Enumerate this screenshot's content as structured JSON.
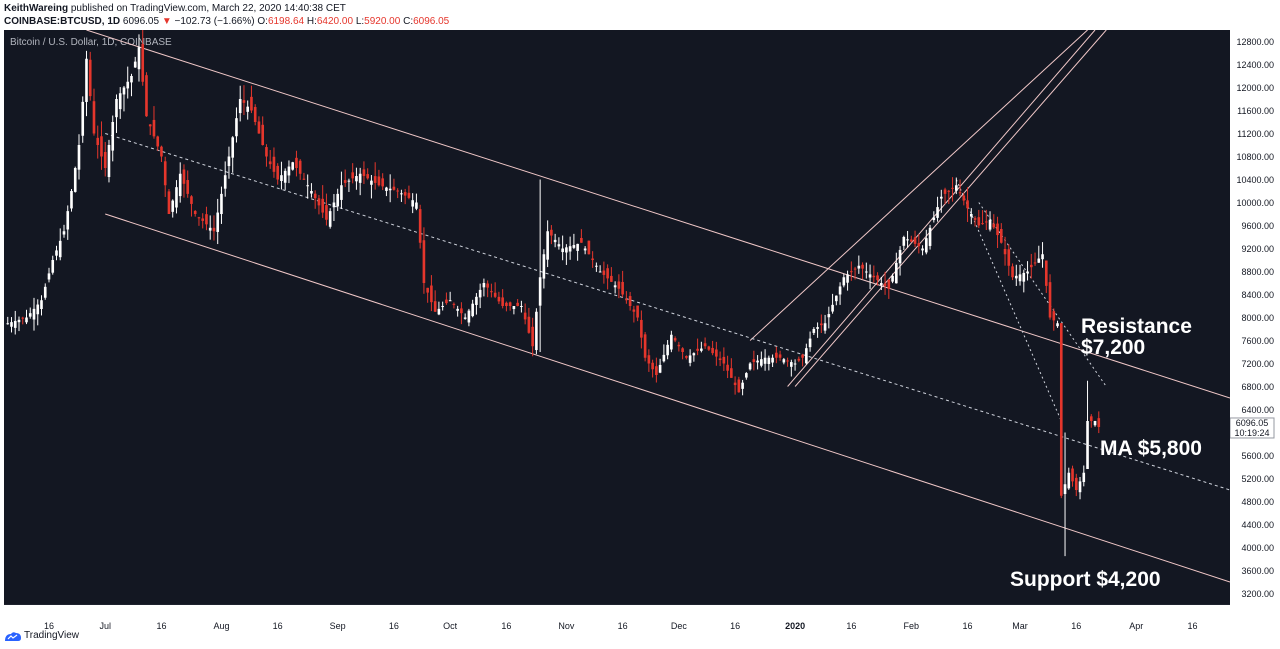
{
  "header": {
    "author": "KeithWareing",
    "published": "published on TradingView.com, March 22, 2020 14:40:38 CET",
    "symbol": "COINBASE:BTCUSD, 1D",
    "last": "6096.05",
    "change_arrow": "▼",
    "change": "−102.73 (−1.66%)",
    "open_label": "O:",
    "open": "6198.64",
    "high_label": "H:",
    "high": "6420.00",
    "low_label": "L:",
    "low": "5920.00",
    "close_label": "C:",
    "close": "6096.05"
  },
  "footer": {
    "brand": "TradingView",
    "logo_icon": "tradingview-logo-icon"
  },
  "colors": {
    "background": "#131722",
    "up": "#ffffff",
    "down": "#e5362c",
    "channel": "#f1c8c8",
    "ma_line": "#cfd3dc",
    "axis_text": "#b2b5be",
    "annotation": "#ffffff"
  },
  "chart_data": {
    "type": "candlestick",
    "title": "Bitcoin / U.S. Dollar, 1D, COINBASE",
    "x_tick_labels": [
      "16",
      "Jul",
      "16",
      "Aug",
      "16",
      "Sep",
      "16",
      "Oct",
      "16",
      "Nov",
      "16",
      "Dec",
      "16",
      "2020",
      "16",
      "Feb",
      "16",
      "Mar",
      "16",
      "Apr",
      "16"
    ],
    "x_tick_dates": [
      "2019-06-16",
      "2019-07-01",
      "2019-07-16",
      "2019-08-01",
      "2019-08-16",
      "2019-09-01",
      "2019-09-16",
      "2019-10-01",
      "2019-10-16",
      "2019-11-01",
      "2019-11-16",
      "2019-12-01",
      "2019-12-16",
      "2020-01-01",
      "2020-01-16",
      "2020-02-01",
      "2020-02-16",
      "2020-03-01",
      "2020-03-16",
      "2020-04-01",
      "2020-04-16"
    ],
    "x_range": [
      "2019-06-04",
      "2020-04-26"
    ],
    "y_range": [
      3000,
      13000
    ],
    "y_ticks": [
      3200,
      3600,
      4000,
      4400,
      4800,
      5200,
      5600,
      6000,
      6400,
      6800,
      7200,
      7600,
      8000,
      8400,
      8800,
      9200,
      9600,
      10000,
      10400,
      10800,
      11200,
      11600,
      12000,
      12400,
      12800
    ],
    "y_tick_labels": [
      "3200.00",
      "3600.00",
      "4000.00",
      "4400.00",
      "4800.00",
      "5200.00",
      "5600.00",
      "6000.00",
      "6400.00",
      "6800.00",
      "7200.00",
      "7600.00",
      "8000.00",
      "8400.00",
      "8800.00",
      "9200.00",
      "9600.00",
      "10000.00",
      "10400.00",
      "10800.00",
      "11200.00",
      "11600.00",
      "12000.00",
      "12400.00",
      "12800.00"
    ],
    "last_price_label": "6096.05",
    "countdown_label": "10:19:24",
    "last_price": 6096.05,
    "grid": false,
    "price_path": [
      [
        "2019-06-05",
        7900
      ],
      [
        "2019-06-10",
        8000
      ],
      [
        "2019-06-14",
        8300
      ],
      [
        "2019-06-17",
        9000
      ],
      [
        "2019-06-20",
        9500
      ],
      [
        "2019-06-22",
        10200
      ],
      [
        "2019-06-24",
        11000
      ],
      [
        "2019-06-26",
        12500
      ],
      [
        "2019-06-28",
        11200
      ],
      [
        "2019-07-01",
        10600
      ],
      [
        "2019-07-04",
        11800
      ],
      [
        "2019-07-08",
        12200
      ],
      [
        "2019-07-10",
        12700
      ],
      [
        "2019-07-12",
        11500
      ],
      [
        "2019-07-16",
        10800
      ],
      [
        "2019-07-18",
        9800
      ],
      [
        "2019-07-21",
        10500
      ],
      [
        "2019-07-25",
        9800
      ],
      [
        "2019-07-30",
        9500
      ],
      [
        "2019-08-03",
        10800
      ],
      [
        "2019-08-06",
        11800
      ],
      [
        "2019-08-09",
        11600
      ],
      [
        "2019-08-13",
        10800
      ],
      [
        "2019-08-16",
        10400
      ],
      [
        "2019-08-20",
        10700
      ],
      [
        "2019-08-25",
        10200
      ],
      [
        "2019-08-29",
        9700
      ],
      [
        "2019-09-02",
        10300
      ],
      [
        "2019-09-07",
        10500
      ],
      [
        "2019-09-12",
        10300
      ],
      [
        "2019-09-17",
        10200
      ],
      [
        "2019-09-22",
        10000
      ],
      [
        "2019-09-24",
        8600
      ],
      [
        "2019-09-27",
        8100
      ],
      [
        "2019-10-01",
        8300
      ],
      [
        "2019-10-05",
        8000
      ],
      [
        "2019-10-10",
        8600
      ],
      [
        "2019-10-15",
        8200
      ],
      [
        "2019-10-20",
        8200
      ],
      [
        "2019-10-23",
        7500
      ],
      [
        "2019-10-25",
        8700
      ],
      [
        "2019-10-27",
        9500
      ],
      [
        "2019-10-31",
        9200
      ],
      [
        "2019-11-05",
        9300
      ],
      [
        "2019-11-10",
        8800
      ],
      [
        "2019-11-15",
        8500
      ],
      [
        "2019-11-20",
        8000
      ],
      [
        "2019-11-22",
        7300
      ],
      [
        "2019-11-25",
        7000
      ],
      [
        "2019-11-29",
        7700
      ],
      [
        "2019-12-03",
        7300
      ],
      [
        "2019-12-08",
        7500
      ],
      [
        "2019-12-13",
        7200
      ],
      [
        "2019-12-17",
        6700
      ],
      [
        "2019-12-20",
        7200
      ],
      [
        "2019-12-24",
        7300
      ],
      [
        "2019-12-28",
        7300
      ],
      [
        "2020-01-01",
        7200
      ],
      [
        "2020-01-03",
        7300
      ],
      [
        "2020-01-06",
        7800
      ],
      [
        "2020-01-09",
        7900
      ],
      [
        "2020-01-14",
        8700
      ],
      [
        "2020-01-18",
        8900
      ],
      [
        "2020-01-22",
        8700
      ],
      [
        "2020-01-26",
        8500
      ],
      [
        "2020-01-30",
        9400
      ],
      [
        "2020-02-04",
        9200
      ],
      [
        "2020-02-09",
        10100
      ],
      [
        "2020-02-13",
        10300
      ],
      [
        "2020-02-16",
        9900
      ],
      [
        "2020-02-19",
        9600
      ],
      [
        "2020-02-22",
        9700
      ],
      [
        "2020-02-25",
        9300
      ],
      [
        "2020-02-28",
        8700
      ],
      [
        "2020-03-03",
        8800
      ],
      [
        "2020-03-07",
        9100
      ],
      [
        "2020-03-09",
        8000
      ],
      [
        "2020-03-11",
        7900
      ],
      [
        "2020-03-12",
        4900
      ],
      [
        "2020-03-14",
        5300
      ],
      [
        "2020-03-16",
        5000
      ],
      [
        "2020-03-18",
        5300
      ],
      [
        "2020-03-19",
        6200
      ],
      [
        "2020-03-21",
        6200
      ],
      [
        "2020-03-22",
        6096
      ]
    ],
    "candle_days": 290,
    "special_wicks": [
      {
        "date": "2019-10-25",
        "low": 7400,
        "high": 10400
      },
      {
        "date": "2020-03-13",
        "low": 3850,
        "high": 6000
      },
      {
        "date": "2020-03-19",
        "low": 5900,
        "high": 6900
      }
    ],
    "descending_channel": {
      "upper": [
        [
          "2019-06-26",
          13000
        ],
        [
          "2020-04-26",
          6600
        ]
      ],
      "lower": [
        [
          "2019-07-01",
          9800
        ],
        [
          "2020-04-26",
          3400
        ]
      ]
    },
    "ascending_channel": {
      "lines": [
        [
          [
            "2019-12-20",
            7600
          ],
          [
            "2020-03-19",
            13000
          ]
        ],
        [
          [
            "2019-12-30",
            6800
          ],
          [
            "2020-03-21",
            13000
          ]
        ],
        [
          [
            "2020-01-01",
            6800
          ],
          [
            "2020-03-24",
            13000
          ]
        ]
      ]
    },
    "ma_line": [
      [
        "2019-07-01",
        11200
      ],
      [
        "2020-04-26",
        5000
      ]
    ],
    "descending_dotted": [
      [
        [
          "2020-02-13",
          10400
        ],
        [
          "2020-03-12",
          6200
        ]
      ],
      [
        [
          "2020-02-19",
          10000
        ],
        [
          "2020-03-24",
          6800
        ]
      ]
    ],
    "annotations": [
      {
        "text": "Resistance",
        "line2": "$7,200",
        "price": 7200
      },
      {
        "text": "MA $5,800",
        "price": 5800
      },
      {
        "text": "Support $4,200",
        "price": 4200
      }
    ]
  }
}
